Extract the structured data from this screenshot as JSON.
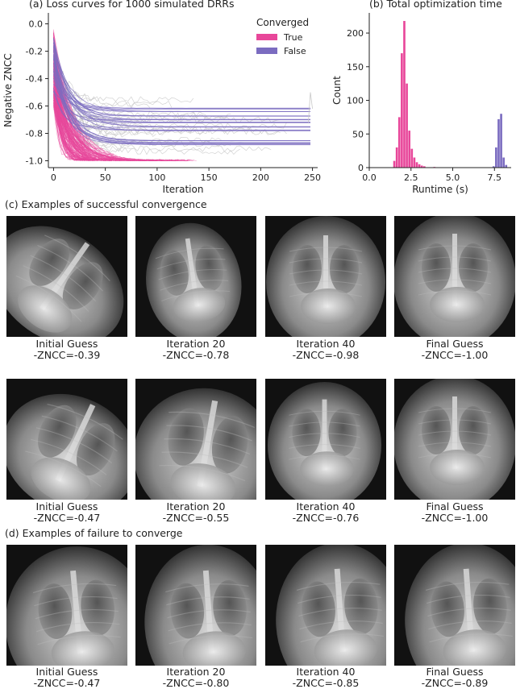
{
  "panel_a": {
    "title": "(a) Loss curves for 1000 simulated DRRs",
    "legend_title": "Converged",
    "legend_true": "True",
    "legend_false": "False",
    "colors": {
      "true": "#e8479a",
      "false": "#7b6cc0"
    }
  },
  "panel_b": {
    "title": "(b) Total optimization time"
  },
  "section_c_title": "(c) Examples of successful convergence",
  "section_d_title": "(d) Examples of failure to converge",
  "rows": [
    {
      "name": "success-row-1",
      "captions": [
        {
          "label": "Initial Guess",
          "score": "-ZNCC=-0.39"
        },
        {
          "label": "Iteration 20",
          "score": "-ZNCC=-0.78"
        },
        {
          "label": "Iteration 40",
          "score": "-ZNCC=-0.98"
        },
        {
          "label": "Final Guess",
          "score": "-ZNCC=-1.00"
        }
      ]
    },
    {
      "name": "success-row-2",
      "captions": [
        {
          "label": "Initial Guess",
          "score": "-ZNCC=-0.47"
        },
        {
          "label": "Iteration 20",
          "score": "-ZNCC=-0.55"
        },
        {
          "label": "Iteration 40",
          "score": "-ZNCC=-0.76"
        },
        {
          "label": "Final Guess",
          "score": "-ZNCC=-1.00"
        }
      ]
    },
    {
      "name": "failure-row",
      "captions": [
        {
          "label": "Initial Guess",
          "score": "-ZNCC=-0.47"
        },
        {
          "label": "Iteration 20",
          "score": "-ZNCC=-0.80"
        },
        {
          "label": "Iteration 40",
          "score": "-ZNCC=-0.85"
        },
        {
          "label": "Final Guess",
          "score": "-ZNCC=-0.89"
        }
      ]
    }
  ],
  "chart_data": [
    {
      "type": "line",
      "title": "(a) Loss curves for 1000 simulated DRRs",
      "xlabel": "Iteration",
      "ylabel": "Negative ZNCC",
      "xlim": [
        -5,
        255
      ],
      "ylim": [
        -1.05,
        0.08
      ],
      "xticks": [
        0,
        50,
        100,
        150,
        200,
        250
      ],
      "yticks": [
        0.0,
        -0.2,
        -0.4,
        -0.6,
        -0.8,
        -1.0
      ],
      "legend": {
        "title": "Converged",
        "entries": [
          "True",
          "False"
        ],
        "placement": "top-right"
      },
      "series": [
        {
          "name": "True",
          "note_count": "many",
          "start_range": [
            -0.05,
            -0.6
          ],
          "plateau": -1.0,
          "end_iteration": 100
        },
        {
          "name": "False",
          "plateaus": [
            -0.62,
            -0.64,
            -0.67,
            -0.7,
            -0.72,
            -0.75,
            -0.78,
            -0.85,
            -0.87,
            -0.88
          ],
          "end_iteration": 250
        }
      ]
    },
    {
      "type": "bar",
      "title": "(b) Total optimization time",
      "xlabel": "Runtime (s)",
      "ylabel": "Count",
      "xlim": [
        0,
        8.5
      ],
      "ylim": [
        0,
        230
      ],
      "xticks": [
        0.0,
        2.5,
        5.0,
        7.5
      ],
      "yticks": [
        0,
        50,
        100,
        150,
        200
      ],
      "series": [
        {
          "name": "True",
          "bins": [
            {
              "x": 1.5,
              "value": 10
            },
            {
              "x": 1.65,
              "value": 30
            },
            {
              "x": 1.8,
              "value": 75
            },
            {
              "x": 1.95,
              "value": 170
            },
            {
              "x": 2.1,
              "value": 218
            },
            {
              "x": 2.25,
              "value": 125
            },
            {
              "x": 2.4,
              "value": 55
            },
            {
              "x": 2.55,
              "value": 28
            },
            {
              "x": 2.7,
              "value": 15
            },
            {
              "x": 2.85,
              "value": 8
            },
            {
              "x": 3.0,
              "value": 5
            },
            {
              "x": 3.15,
              "value": 3
            },
            {
              "x": 3.3,
              "value": 2
            },
            {
              "x": 3.9,
              "value": 1
            }
          ]
        },
        {
          "name": "False",
          "bins": [
            {
              "x": 7.45,
              "value": 2
            },
            {
              "x": 7.6,
              "value": 30
            },
            {
              "x": 7.75,
              "value": 72
            },
            {
              "x": 7.9,
              "value": 80
            },
            {
              "x": 8.05,
              "value": 15
            },
            {
              "x": 8.2,
              "value": 4
            }
          ]
        }
      ]
    }
  ]
}
